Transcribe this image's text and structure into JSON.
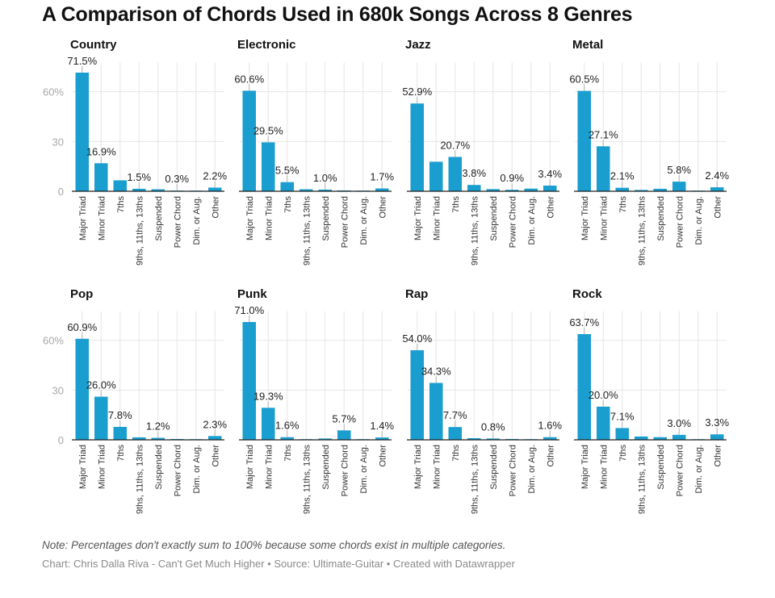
{
  "title": "A Comparison of Chords Used in 680k Songs Across 8 Genres",
  "note": "Note: Percentages don't exactly sum to 100% because some chords exist in multiple categories.",
  "credit": "Chart: Chris Dalla Riva - Can't Get Much Higher • Source: Ultimate-Guitar • Created with Datawrapper",
  "colors": {
    "bar": "#1a9ecf",
    "axis": "#222222",
    "grid": "#e6e6e6"
  },
  "chart_data": {
    "type": "bar",
    "categories": [
      "Major Triad",
      "Minor Triad",
      "7ths",
      "9ths, 11ths, 13ths",
      "Suspended",
      "Power Chord",
      "Dim. or Aug.",
      "Other"
    ],
    "ylim": [
      0,
      80
    ],
    "yticks": [
      0,
      30,
      60
    ],
    "ytick_labels": [
      "0",
      "30",
      "60%"
    ],
    "series": [
      {
        "name": "Country",
        "values": [
          71.5,
          16.9,
          6.6,
          1.5,
          1.2,
          0.3,
          0.1,
          2.2
        ],
        "labels": [
          "71.5%",
          "16.9%",
          "",
          "1.5%",
          "",
          "0.3%",
          "",
          "2.2%"
        ]
      },
      {
        "name": "Electronic",
        "values": [
          60.6,
          29.5,
          5.5,
          1.2,
          1.0,
          0.5,
          0.2,
          1.7
        ],
        "labels": [
          "60.6%",
          "29.5%",
          "5.5%",
          "",
          "1.0%",
          "",
          "",
          "1.7%"
        ]
      },
      {
        "name": "Jazz",
        "values": [
          52.9,
          17.8,
          20.7,
          3.8,
          1.3,
          0.9,
          1.6,
          3.4
        ],
        "labels": [
          "52.9%",
          "",
          "20.7%",
          "3.8%",
          "",
          "0.9%",
          "",
          "3.4%"
        ]
      },
      {
        "name": "Metal",
        "values": [
          60.5,
          27.1,
          2.1,
          0.8,
          1.5,
          5.8,
          0.2,
          2.4
        ],
        "labels": [
          "60.5%",
          "27.1%",
          "2.1%",
          "",
          "",
          "5.8%",
          "",
          "2.4%"
        ]
      },
      {
        "name": "Pop",
        "values": [
          60.9,
          26.0,
          7.8,
          1.5,
          1.2,
          0.5,
          0.1,
          2.3
        ],
        "labels": [
          "60.9%",
          "26.0%",
          "7.8%",
          "",
          "1.2%",
          "",
          "",
          "2.3%"
        ]
      },
      {
        "name": "Punk",
        "values": [
          71.0,
          19.3,
          1.6,
          0.3,
          0.8,
          5.7,
          0.1,
          1.4
        ],
        "labels": [
          "71.0%",
          "19.3%",
          "1.6%",
          "",
          "",
          "5.7%",
          "",
          "1.4%"
        ]
      },
      {
        "name": "Rap",
        "values": [
          54.0,
          34.3,
          7.7,
          1.0,
          0.8,
          0.5,
          0.1,
          1.6
        ],
        "labels": [
          "54.0%",
          "34.3%",
          "7.7%",
          "",
          "0.8%",
          "",
          "",
          "1.6%"
        ]
      },
      {
        "name": "Rock",
        "values": [
          63.7,
          20.0,
          7.1,
          2.0,
          1.6,
          3.0,
          0.2,
          3.3
        ],
        "labels": [
          "63.7%",
          "20.0%",
          "7.1%",
          "",
          "",
          "3.0%",
          "",
          "3.3%"
        ]
      }
    ]
  }
}
